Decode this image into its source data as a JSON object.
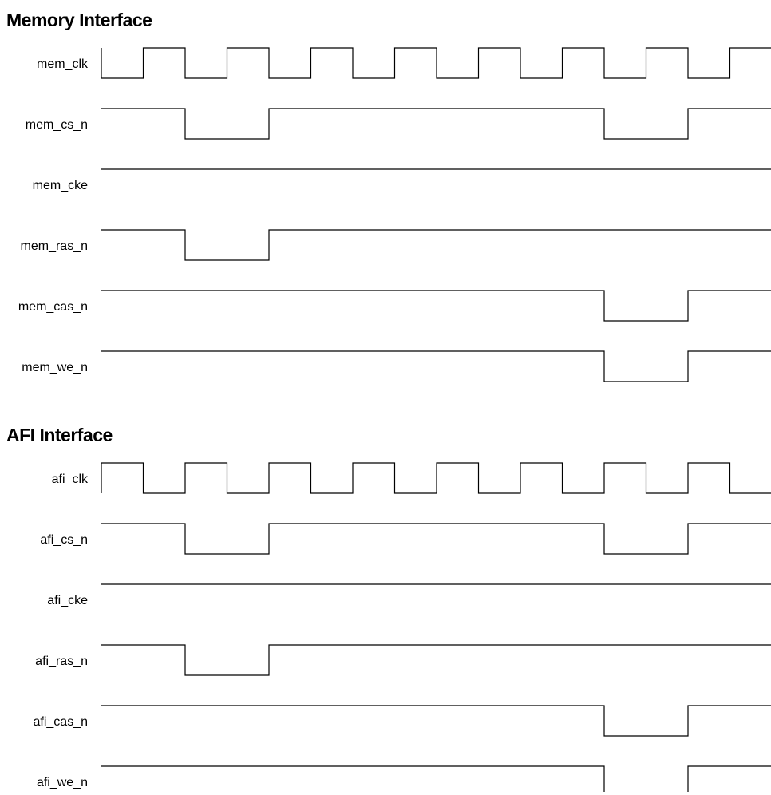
{
  "sections": [
    {
      "title": "Memory Interface",
      "signals": [
        {
          "name": "mem_clk",
          "kind": "clock",
          "start_level": 0,
          "edges": [
            1,
            2,
            3,
            4,
            5,
            6,
            7,
            8,
            9,
            10,
            11,
            12,
            13,
            14,
            15,
            16
          ]
        },
        {
          "name": "mem_cs_n",
          "kind": "level",
          "start_level": 1,
          "edges": [
            2,
            4,
            12,
            14
          ]
        },
        {
          "name": "mem_cke",
          "kind": "level",
          "start_level": 1,
          "edges": []
        },
        {
          "name": "mem_ras_n",
          "kind": "level",
          "start_level": 1,
          "edges": [
            2,
            4
          ]
        },
        {
          "name": "mem_cas_n",
          "kind": "level",
          "start_level": 1,
          "edges": [
            12,
            14
          ]
        },
        {
          "name": "mem_we_n",
          "kind": "level",
          "start_level": 1,
          "edges": [
            12,
            14
          ]
        }
      ]
    },
    {
      "title": "AFI Interface",
      "signals": [
        {
          "name": "afi_clk",
          "kind": "clock",
          "start_level": 1,
          "edges": [
            1,
            2,
            3,
            4,
            5,
            6,
            7,
            8,
            9,
            10,
            11,
            12,
            13,
            14,
            15,
            16
          ]
        },
        {
          "name": "afi_cs_n",
          "kind": "level",
          "start_level": 1,
          "edges": [
            2,
            4,
            12,
            14
          ]
        },
        {
          "name": "afi_cke",
          "kind": "level",
          "start_level": 1,
          "edges": []
        },
        {
          "name": "afi_ras_n",
          "kind": "level",
          "start_level": 1,
          "edges": [
            2,
            4
          ]
        },
        {
          "name": "afi_cas_n",
          "kind": "level",
          "start_level": 1,
          "edges": [
            12,
            14
          ]
        },
        {
          "name": "afi_we_n",
          "kind": "level",
          "start_level": 1,
          "edges": [
            12,
            14
          ],
          "truncated": true
        }
      ]
    }
  ],
  "total_half_cycles": 16
}
